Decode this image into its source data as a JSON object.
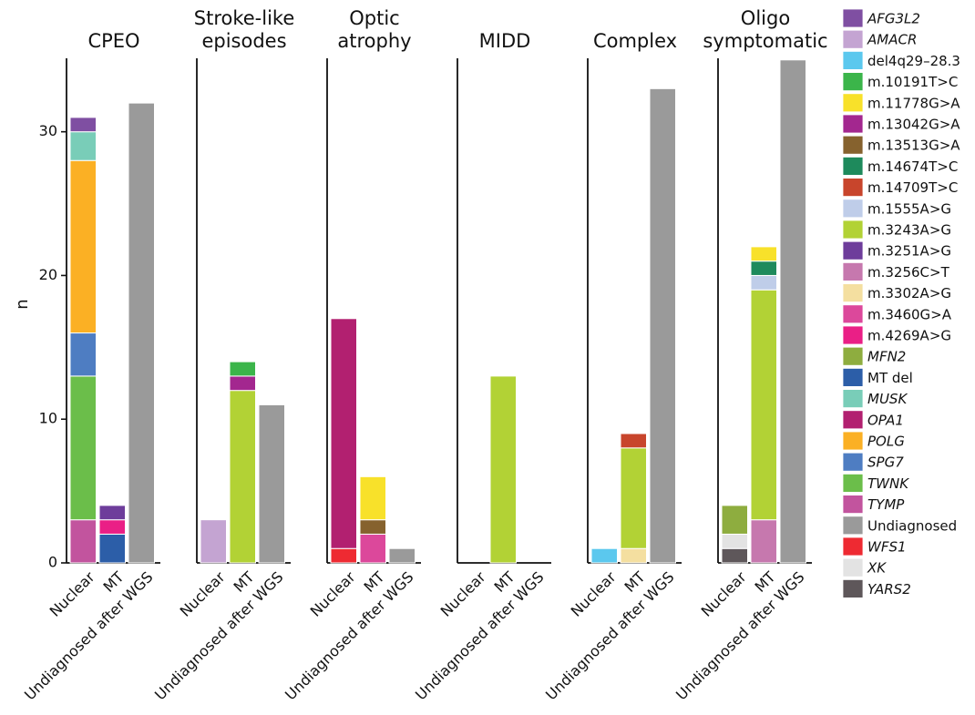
{
  "chart_data": {
    "type": "bar",
    "stacked": true,
    "ylabel": "n",
    "ylim": [
      0,
      36
    ],
    "yticks": [
      0,
      10,
      20,
      30
    ],
    "grid": false,
    "legend_position": "right",
    "panels": [
      {
        "title_lines": [
          "CPEO"
        ],
        "categories": [
          "Nuclear",
          "MT",
          "Undiagnosed after WGS"
        ],
        "stacks": [
          [
            {
              "series": "TYMP",
              "value": 3
            },
            {
              "series": "TWNK",
              "value": 10
            },
            {
              "series": "SPG7",
              "value": 3
            },
            {
              "series": "POLG",
              "value": 12
            },
            {
              "series": "MUSK",
              "value": 2
            },
            {
              "series": "AFG3L2",
              "value": 1
            }
          ],
          [
            {
              "series": "MT del",
              "value": 2
            },
            {
              "series": "m.4269A>G",
              "value": 1
            },
            {
              "series": "m.3251A>G",
              "value": 1
            }
          ],
          [
            {
              "series": "Undiagnosed",
              "value": 32
            }
          ]
        ]
      },
      {
        "title_lines": [
          "Stroke-like",
          "episodes"
        ],
        "categories": [
          "Nuclear",
          "MT",
          "Undiagnosed after WGS"
        ],
        "stacks": [
          [
            {
              "series": "AMACR",
              "value": 3
            }
          ],
          [
            {
              "series": "m.3243A>G",
              "value": 12
            },
            {
              "series": "m.13042G>A",
              "value": 1
            },
            {
              "series": "m.10191T>C",
              "value": 1
            }
          ],
          [
            {
              "series": "Undiagnosed",
              "value": 11
            }
          ]
        ]
      },
      {
        "title_lines": [
          "Optic",
          "atrophy"
        ],
        "categories": [
          "Nuclear",
          "MT",
          "Undiagnosed after WGS"
        ],
        "stacks": [
          [
            {
              "series": "WFS1",
              "value": 1
            },
            {
              "series": "OPA1",
              "value": 16
            }
          ],
          [
            {
              "series": "m.3460G>A",
              "value": 2
            },
            {
              "series": "m.13513G>A",
              "value": 1
            },
            {
              "series": "m.11778G>A",
              "value": 3
            }
          ],
          [
            {
              "series": "Undiagnosed",
              "value": 1
            }
          ]
        ]
      },
      {
        "title_lines": [
          "MIDD"
        ],
        "categories": [
          "Nuclear",
          "MT",
          "Undiagnosed after WGS"
        ],
        "stacks": [
          [],
          [
            {
              "series": "m.3243A>G",
              "value": 13
            }
          ],
          []
        ]
      },
      {
        "title_lines": [
          "Complex"
        ],
        "categories": [
          "Nuclear",
          "MT",
          "Undiagnosed after WGS"
        ],
        "stacks": [
          [
            {
              "series": "del4q29–28.3",
              "value": 1
            }
          ],
          [
            {
              "series": "m.3302A>G",
              "value": 1
            },
            {
              "series": "m.3243A>G",
              "value": 7
            },
            {
              "series": "m.14709T>C",
              "value": 1
            }
          ],
          [
            {
              "series": "Undiagnosed",
              "value": 33
            }
          ]
        ]
      },
      {
        "title_lines": [
          "Oligo",
          "symptomatic"
        ],
        "categories": [
          "Nuclear",
          "MT",
          "Undiagnosed after WGS"
        ],
        "stacks": [
          [
            {
              "series": "YARS2",
              "value": 1
            },
            {
              "series": "XK",
              "value": 1
            },
            {
              "series": "MFN2",
              "value": 2
            }
          ],
          [
            {
              "series": "m.3256C>T",
              "value": 3
            },
            {
              "series": "m.3243A>G",
              "value": 16
            },
            {
              "series": "m.1555A>G",
              "value": 1
            },
            {
              "series": "m.14674T>C",
              "value": 1
            },
            {
              "series": "m.11778G>A",
              "value": 1
            }
          ],
          [
            {
              "series": "Undiagnosed",
              "value": 35
            }
          ]
        ]
      }
    ],
    "legend": [
      {
        "name": "AFG3L2",
        "color": "#7F4FA2",
        "italic": true
      },
      {
        "name": "AMACR",
        "color": "#C4A4D2",
        "italic": true
      },
      {
        "name": "del4q29–28.3",
        "color": "#5BC8EE",
        "italic": false
      },
      {
        "name": "m.10191T>C",
        "color": "#3BB54A",
        "italic": false
      },
      {
        "name": "m.11778G>A",
        "color": "#F8E12A",
        "italic": false
      },
      {
        "name": "m.13042G>A",
        "color": "#A3278F",
        "italic": false
      },
      {
        "name": "m.13513G>A",
        "color": "#86622E",
        "italic": false
      },
      {
        "name": "m.14674T>C",
        "color": "#1E8A5C",
        "italic": false
      },
      {
        "name": "m.14709T>C",
        "color": "#C8452C",
        "italic": false
      },
      {
        "name": "m.1555A>G",
        "color": "#BFCDE9",
        "italic": false
      },
      {
        "name": "m.3243A>G",
        "color": "#B2D235",
        "italic": false
      },
      {
        "name": "m.3251A>G",
        "color": "#6E3D9B",
        "italic": false
      },
      {
        "name": "m.3256C>T",
        "color": "#C678AE",
        "italic": false
      },
      {
        "name": "m.3302A>G",
        "color": "#F4DFA0",
        "italic": false
      },
      {
        "name": "m.3460G>A",
        "color": "#DC489B",
        "italic": false
      },
      {
        "name": "m.4269A>G",
        "color": "#EA1F86",
        "italic": false
      },
      {
        "name": "MFN2",
        "color": "#8EAD3F",
        "italic": true
      },
      {
        "name": "MT del",
        "color": "#2C5EA8",
        "italic": false
      },
      {
        "name": "MUSK",
        "color": "#79CDB8",
        "italic": true
      },
      {
        "name": "OPA1",
        "color": "#B22070",
        "italic": true
      },
      {
        "name": "POLG",
        "color": "#FBB024",
        "italic": true
      },
      {
        "name": "SPG7",
        "color": "#4E7DC2",
        "italic": true
      },
      {
        "name": "TWNK",
        "color": "#6BBE4A",
        "italic": true
      },
      {
        "name": "TYMP",
        "color": "#C2549E",
        "italic": true
      },
      {
        "name": "Undiagnosed",
        "color": "#9A9A9A",
        "italic": false
      },
      {
        "name": "WFS1",
        "color": "#EE2A32",
        "italic": true
      },
      {
        "name": "XK",
        "color": "#E3E3E3",
        "italic": true
      },
      {
        "name": "YARS2",
        "color": "#5E575A",
        "italic": true
      }
    ]
  }
}
